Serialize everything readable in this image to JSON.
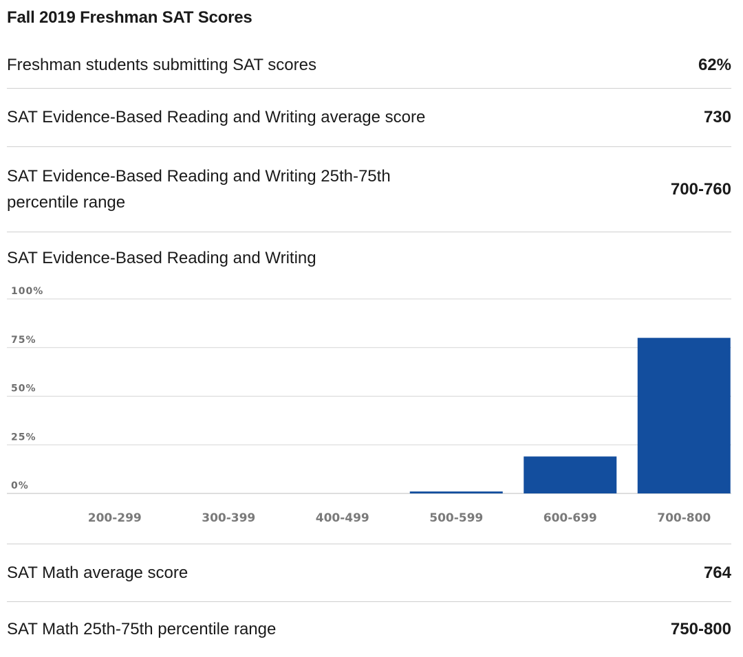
{
  "title": "Fall 2019 Freshman SAT Scores",
  "rows": [
    {
      "label": "Freshman students submitting SAT scores",
      "value": "62%"
    },
    {
      "label": "SAT Evidence-Based Reading and Writing average score",
      "value": "730"
    },
    {
      "label": "SAT Evidence-Based Reading and Writing 25th-75th percentile range",
      "value": "700-760"
    }
  ],
  "math_rows": [
    {
      "label": "SAT Math average score",
      "value": "764"
    },
    {
      "label": "SAT Math 25th-75th percentile range",
      "value": "750-800"
    }
  ],
  "chart_data": {
    "type": "bar",
    "title": "SAT Evidence-Based Reading and Writing",
    "categories": [
      "200-299",
      "300-399",
      "400-499",
      "500-599",
      "600-699",
      "700-800"
    ],
    "values": [
      0,
      0,
      0,
      1,
      19,
      80
    ],
    "ylim": [
      0,
      100
    ],
    "yticks": [
      0,
      25,
      50,
      75,
      100
    ],
    "ytick_labels": [
      "0%",
      "25%",
      "50%",
      "75%",
      "100%"
    ],
    "grid": true,
    "bar_color": "#134e9e"
  }
}
